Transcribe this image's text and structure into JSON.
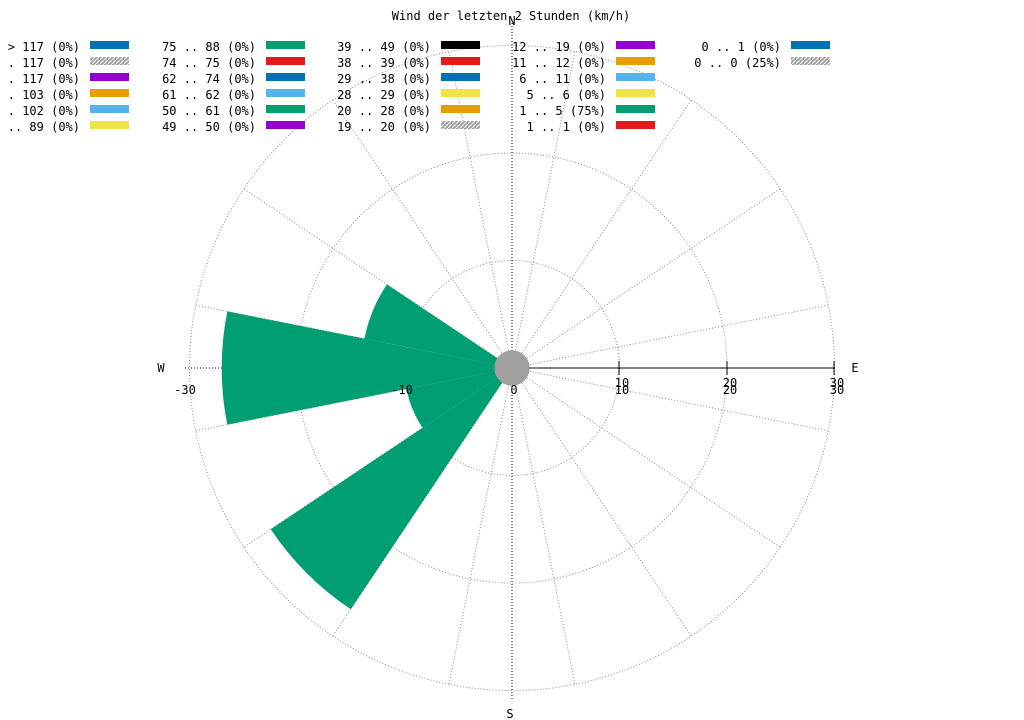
{
  "chart_data": {
    "type": "wind-rose",
    "title": "Wind der letzten 2 Stunden (km/h)",
    "directions": {
      "north": "N",
      "south": "S",
      "east": "E",
      "west": "W"
    },
    "radial_ticks": [
      "-30",
      "-10",
      "0",
      "10",
      "20",
      "30",
      "10",
      "20",
      "30"
    ],
    "rmax": 30,
    "ring_step": 10,
    "sector_width_deg": 22.5,
    "bar_color": "#009e73",
    "calm_color": "#a0a0a0",
    "series": [
      {
        "name": "1 .. 5 (75%)",
        "sectors": [
          {
            "direction_deg": 225,
            "value": 27
          },
          {
            "direction_deg": 247.5,
            "value": 10
          },
          {
            "direction_deg": 270,
            "value": 27
          },
          {
            "direction_deg": 292.5,
            "value": 14
          }
        ]
      }
    ],
    "calm": {
      "label": "0 .. 0 (25%)",
      "value": 1
    },
    "legend": [
      {
        "label": "> 117 (0%)",
        "color": "#0072b2",
        "hatch": false
      },
      {
        "label": ". 117 (0%)",
        "color": "#a0a0a0",
        "hatch": true
      },
      {
        "label": ". 117 (0%)",
        "color": "#9400d3",
        "hatch": false
      },
      {
        "label": ". 103 (0%)",
        "color": "#e69f00",
        "hatch": false
      },
      {
        "label": ". 102 (0%)",
        "color": "#56b4e9",
        "hatch": false
      },
      {
        "label": ".. 89 (0%)",
        "color": "#f0e442",
        "hatch": false
      },
      {
        "label": "75 .. 88 (0%)",
        "color": "#009e73",
        "hatch": false
      },
      {
        "label": "74 .. 75 (0%)",
        "color": "#e41a1c",
        "hatch": false
      },
      {
        "label": "62 .. 74 (0%)",
        "color": "#0072b2",
        "hatch": false
      },
      {
        "label": "61 .. 62 (0%)",
        "color": "#56b4e9",
        "hatch": false
      },
      {
        "label": "50 .. 61 (0%)",
        "color": "#009e73",
        "hatch": false
      },
      {
        "label": "49 .. 50 (0%)",
        "color": "#9400d3",
        "hatch": false
      },
      {
        "label": "39 .. 49 (0%)",
        "color": "#000000",
        "hatch": false
      },
      {
        "label": "38 .. 39 (0%)",
        "color": "#e41a1c",
        "hatch": false
      },
      {
        "label": "29 .. 38 (0%)",
        "color": "#0072b2",
        "hatch": false
      },
      {
        "label": "28 .. 29 (0%)",
        "color": "#f0e442",
        "hatch": false
      },
      {
        "label": "20 .. 28 (0%)",
        "color": "#e69f00",
        "hatch": false
      },
      {
        "label": "19 .. 20 (0%)",
        "color": "#a0a0a0",
        "hatch": true
      },
      {
        "label": "12 .. 19 (0%)",
        "color": "#9400d3",
        "hatch": false
      },
      {
        "label": "11 .. 12 (0%)",
        "color": "#e69f00",
        "hatch": false
      },
      {
        "label": "6 .. 11 (0%)",
        "color": "#56b4e9",
        "hatch": false
      },
      {
        "label": "5 .. 6 (0%)",
        "color": "#f0e442",
        "hatch": false
      },
      {
        "label": "1 .. 5 (75%)",
        "color": "#009e73",
        "hatch": false
      },
      {
        "label": "1 .. 1 (0%)",
        "color": "#e41a1c",
        "hatch": false
      },
      {
        "label": "0 .. 1 (0%)",
        "color": "#0072b2",
        "hatch": false
      },
      {
        "label": "0 .. 0 (25%)",
        "color": "#a0a0a0",
        "hatch": true
      }
    ]
  }
}
